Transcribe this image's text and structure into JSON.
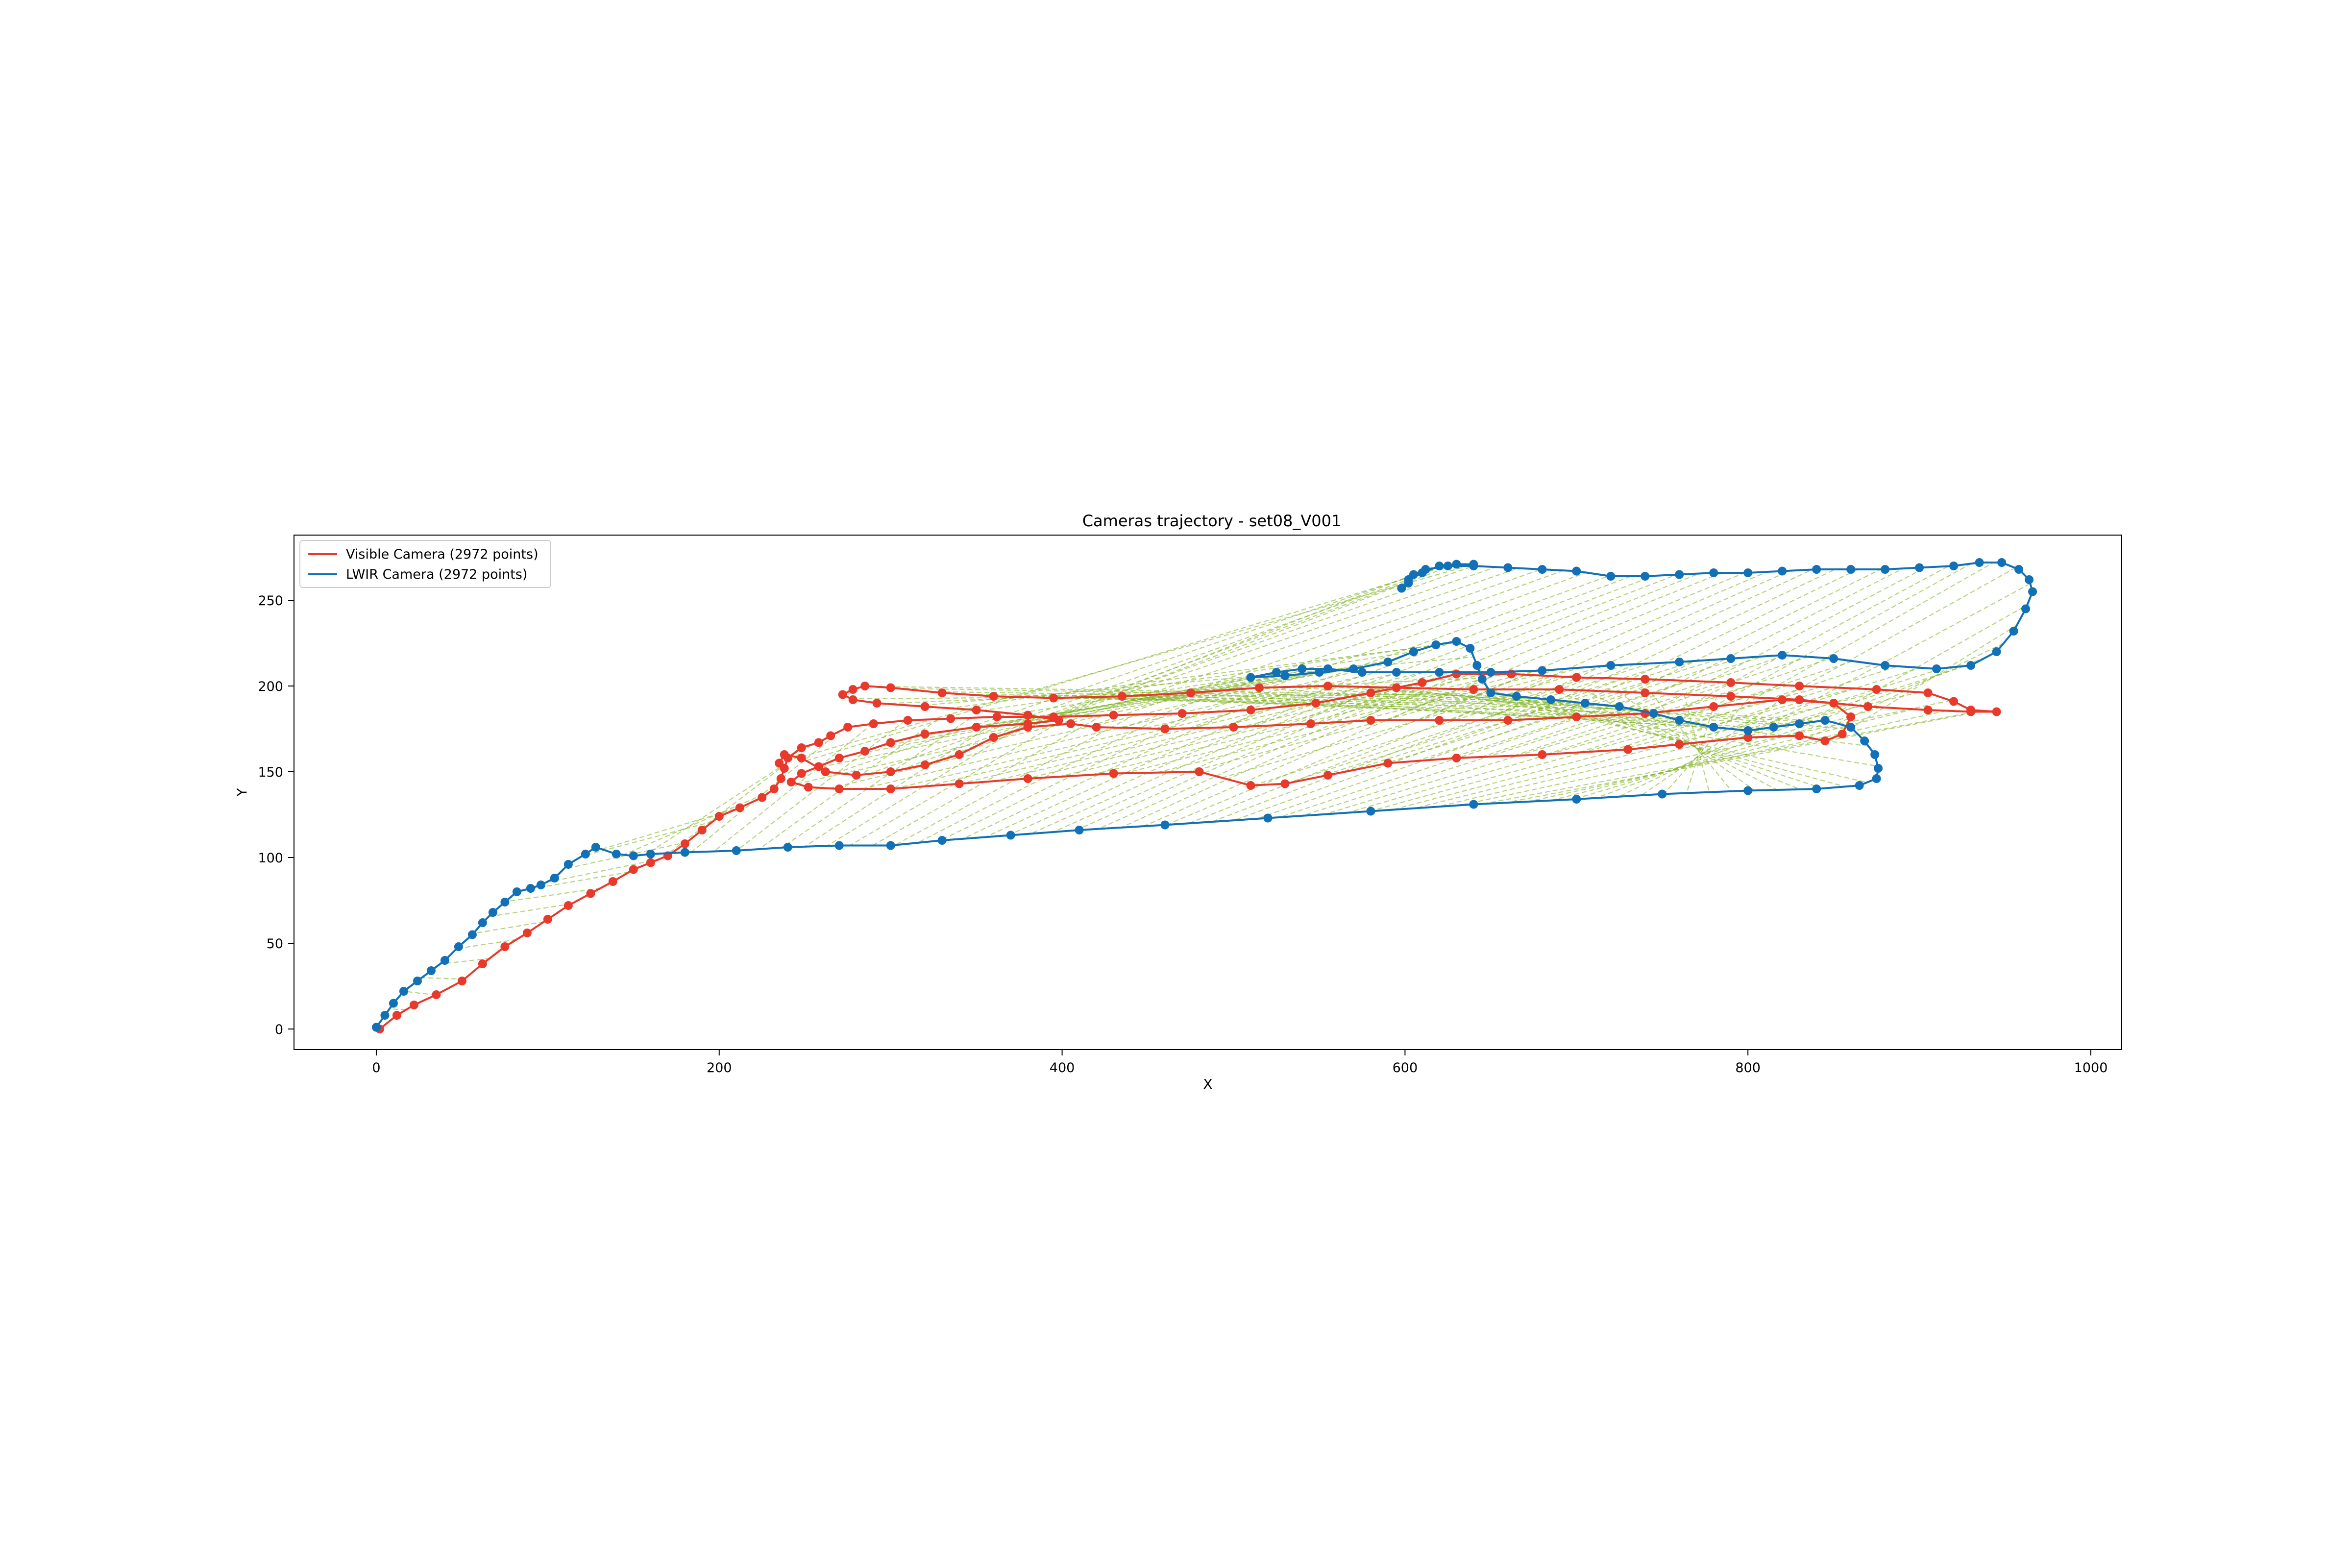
{
  "chart_data": {
    "type": "line",
    "title": "Cameras trajectory - set08_V001",
    "xlabel": "X",
    "ylabel": "Y",
    "xlim": [
      -48,
      1018
    ],
    "ylim": [
      -12,
      288
    ],
    "x_ticks": [
      0,
      200,
      400,
      600,
      800,
      1000
    ],
    "y_ticks": [
      0,
      50,
      100,
      150,
      200,
      250
    ],
    "grid": false,
    "legend_position": "upper-left",
    "colors": {
      "visible": "#e8392b",
      "lwir": "#1170b6",
      "correspondence": "#7aaf1a"
    },
    "series": [
      {
        "name": "Visible Camera (2972 points)",
        "key": "visible",
        "color": "#e8392b",
        "points": [
          [
            2,
            0
          ],
          [
            12,
            8
          ],
          [
            22,
            14
          ],
          [
            35,
            20
          ],
          [
            50,
            28
          ],
          [
            62,
            38
          ],
          [
            75,
            48
          ],
          [
            88,
            56
          ],
          [
            100,
            64
          ],
          [
            112,
            72
          ],
          [
            125,
            79
          ],
          [
            138,
            86
          ],
          [
            150,
            93
          ],
          [
            160,
            97
          ],
          [
            170,
            101
          ],
          [
            180,
            108
          ],
          [
            190,
            116
          ],
          [
            200,
            124
          ],
          [
            212,
            129
          ],
          [
            225,
            135
          ],
          [
            232,
            140
          ],
          [
            236,
            146
          ],
          [
            238,
            152
          ],
          [
            240,
            158
          ],
          [
            248,
            164
          ],
          [
            258,
            167
          ],
          [
            265,
            171
          ],
          [
            275,
            176
          ],
          [
            290,
            178
          ],
          [
            310,
            180
          ],
          [
            335,
            181
          ],
          [
            362,
            182
          ],
          [
            395,
            182
          ],
          [
            430,
            183
          ],
          [
            470,
            184
          ],
          [
            510,
            186
          ],
          [
            548,
            190
          ],
          [
            580,
            196
          ],
          [
            610,
            202
          ],
          [
            630,
            207
          ],
          [
            662,
            207
          ],
          [
            700,
            205
          ],
          [
            740,
            204
          ],
          [
            790,
            202
          ],
          [
            830,
            200
          ],
          [
            875,
            198
          ],
          [
            905,
            196
          ],
          [
            920,
            191
          ],
          [
            930,
            186
          ],
          [
            945,
            185
          ],
          [
            930,
            185
          ],
          [
            905,
            186
          ],
          [
            870,
            188
          ],
          [
            830,
            192
          ],
          [
            790,
            194
          ],
          [
            740,
            196
          ],
          [
            690,
            198
          ],
          [
            640,
            198
          ],
          [
            595,
            199
          ],
          [
            555,
            200
          ],
          [
            515,
            199
          ],
          [
            475,
            196
          ],
          [
            435,
            194
          ],
          [
            395,
            193
          ],
          [
            360,
            194
          ],
          [
            330,
            196
          ],
          [
            300,
            199
          ],
          [
            285,
            200
          ],
          [
            278,
            198
          ],
          [
            272,
            195
          ],
          [
            278,
            192
          ],
          [
            292,
            190
          ],
          [
            320,
            188
          ],
          [
            350,
            186
          ],
          [
            380,
            183
          ],
          [
            398,
            180
          ],
          [
            380,
            178
          ],
          [
            350,
            176
          ],
          [
            320,
            172
          ],
          [
            300,
            167
          ],
          [
            285,
            162
          ],
          [
            270,
            158
          ],
          [
            258,
            153
          ],
          [
            248,
            149
          ],
          [
            242,
            144
          ],
          [
            252,
            141
          ],
          [
            270,
            140
          ],
          [
            300,
            140
          ],
          [
            340,
            143
          ],
          [
            380,
            146
          ],
          [
            430,
            149
          ],
          [
            480,
            150
          ],
          [
            510,
            142
          ],
          [
            530,
            143
          ],
          [
            555,
            148
          ],
          [
            590,
            155
          ],
          [
            630,
            158
          ],
          [
            680,
            160
          ],
          [
            730,
            163
          ],
          [
            760,
            166
          ],
          [
            800,
            170
          ],
          [
            830,
            171
          ],
          [
            845,
            168
          ],
          [
            855,
            172
          ],
          [
            860,
            182
          ],
          [
            850,
            190
          ],
          [
            820,
            192
          ],
          [
            780,
            188
          ],
          [
            740,
            184
          ],
          [
            700,
            182
          ],
          [
            660,
            180
          ],
          [
            620,
            180
          ],
          [
            580,
            180
          ],
          [
            545,
            178
          ],
          [
            500,
            176
          ],
          [
            460,
            175
          ],
          [
            420,
            176
          ],
          [
            405,
            178
          ],
          [
            380,
            176
          ],
          [
            360,
            170
          ],
          [
            340,
            160
          ],
          [
            320,
            154
          ],
          [
            300,
            150
          ],
          [
            280,
            148
          ],
          [
            262,
            150
          ],
          [
            248,
            158
          ],
          [
            238,
            160
          ],
          [
            235,
            155
          ]
        ]
      },
      {
        "name": "LWIR Camera (2972 points)",
        "key": "lwir",
        "color": "#1170b6",
        "points": [
          [
            0,
            1
          ],
          [
            5,
            8
          ],
          [
            10,
            15
          ],
          [
            16,
            22
          ],
          [
            24,
            28
          ],
          [
            32,
            34
          ],
          [
            40,
            40
          ],
          [
            48,
            48
          ],
          [
            56,
            55
          ],
          [
            62,
            62
          ],
          [
            68,
            68
          ],
          [
            75,
            74
          ],
          [
            82,
            80
          ],
          [
            90,
            82
          ],
          [
            96,
            84
          ],
          [
            104,
            88
          ],
          [
            112,
            96
          ],
          [
            122,
            102
          ],
          [
            128,
            106
          ],
          [
            140,
            102
          ],
          [
            150,
            101
          ],
          [
            160,
            102
          ],
          [
            180,
            103
          ],
          [
            210,
            104
          ],
          [
            240,
            106
          ],
          [
            270,
            107
          ],
          [
            300,
            107
          ],
          [
            330,
            110
          ],
          [
            370,
            113
          ],
          [
            410,
            116
          ],
          [
            460,
            119
          ],
          [
            520,
            123
          ],
          [
            580,
            127
          ],
          [
            640,
            131
          ],
          [
            700,
            134
          ],
          [
            750,
            137
          ],
          [
            800,
            139
          ],
          [
            840,
            140
          ],
          [
            865,
            142
          ],
          [
            875,
            146
          ],
          [
            876,
            152
          ],
          [
            874,
            160
          ],
          [
            868,
            168
          ],
          [
            860,
            176
          ],
          [
            845,
            180
          ],
          [
            830,
            178
          ],
          [
            815,
            176
          ],
          [
            800,
            174
          ],
          [
            780,
            176
          ],
          [
            760,
            180
          ],
          [
            745,
            184
          ],
          [
            725,
            188
          ],
          [
            705,
            190
          ],
          [
            685,
            192
          ],
          [
            665,
            194
          ],
          [
            650,
            196
          ],
          [
            645,
            204
          ],
          [
            642,
            212
          ],
          [
            638,
            222
          ],
          [
            630,
            226
          ],
          [
            618,
            224
          ],
          [
            605,
            220
          ],
          [
            590,
            214
          ],
          [
            570,
            210
          ],
          [
            550,
            208
          ],
          [
            530,
            206
          ],
          [
            510,
            205
          ],
          [
            525,
            208
          ],
          [
            540,
            210
          ],
          [
            555,
            210
          ],
          [
            575,
            208
          ],
          [
            595,
            208
          ],
          [
            620,
            208
          ],
          [
            650,
            208
          ],
          [
            680,
            209
          ],
          [
            720,
            212
          ],
          [
            760,
            214
          ],
          [
            790,
            216
          ],
          [
            820,
            218
          ],
          [
            850,
            216
          ],
          [
            880,
            212
          ],
          [
            910,
            210
          ],
          [
            930,
            212
          ],
          [
            945,
            220
          ],
          [
            955,
            232
          ],
          [
            962,
            245
          ],
          [
            966,
            255
          ],
          [
            964,
            262
          ],
          [
            958,
            268
          ],
          [
            948,
            272
          ],
          [
            935,
            272
          ],
          [
            920,
            270
          ],
          [
            900,
            269
          ],
          [
            880,
            268
          ],
          [
            860,
            268
          ],
          [
            840,
            268
          ],
          [
            820,
            267
          ],
          [
            800,
            266
          ],
          [
            780,
            266
          ],
          [
            760,
            265
          ],
          [
            740,
            264
          ],
          [
            720,
            264
          ],
          [
            700,
            267
          ],
          [
            680,
            268
          ],
          [
            660,
            269
          ],
          [
            640,
            270
          ],
          [
            625,
            270
          ],
          [
            612,
            268
          ],
          [
            605,
            265
          ],
          [
            602,
            260
          ],
          [
            598,
            257
          ],
          [
            602,
            262
          ],
          [
            610,
            266
          ],
          [
            620,
            270
          ],
          [
            630,
            271
          ],
          [
            640,
            271
          ]
        ]
      }
    ]
  }
}
